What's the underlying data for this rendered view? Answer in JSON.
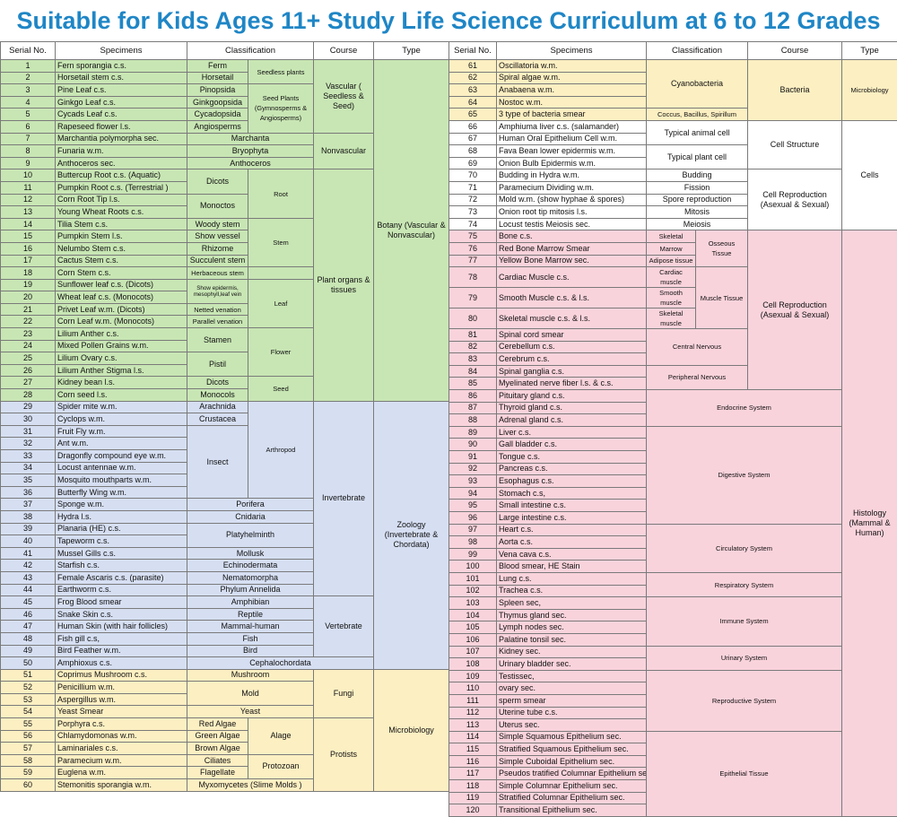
{
  "title": "Suitable for Kids Ages 11+ Study Life Science Curriculum at 6 to 12 Grades",
  "headers": {
    "serial": "Serial No.",
    "specimens": "Specimens",
    "classification": "Classification",
    "course": "Course",
    "type": "Type"
  },
  "left_rows": [
    [
      "1",
      "Fern sporangia c.s."
    ],
    [
      "2",
      "Horsetail stem c.s."
    ],
    [
      "3",
      "Pine Leaf c.s."
    ],
    [
      "4",
      "Ginkgo Leaf c.s."
    ],
    [
      "5",
      "Cycads Leaf c.s."
    ],
    [
      "6",
      "Rapeseed flower l.s."
    ],
    [
      "7",
      "Marchantia polymorpha sec."
    ],
    [
      "8",
      "Funaria w.m."
    ],
    [
      "9",
      "Anthoceros sec."
    ],
    [
      "10",
      "Buttercup Root c.s. (Aquatic)"
    ],
    [
      "11",
      "Pumpkin Root c.s. (Terrestrial )"
    ],
    [
      "12",
      "Corn Root Tip l.s."
    ],
    [
      "13",
      "Young Wheat Roots c.s."
    ],
    [
      "14",
      "Tilia Stem c.s."
    ],
    [
      "15",
      "Pumpkin Stem l.s."
    ],
    [
      "16",
      "Nelumbo Stem c.s."
    ],
    [
      "17",
      "Cactus Stem c.s."
    ],
    [
      "18",
      "Corn Stem c.s."
    ],
    [
      "19",
      "Sunflower leaf c.s. (Dicots)"
    ],
    [
      "20",
      "Wheat leaf c.s. (Monocots)"
    ],
    [
      "21",
      "Privet Leaf w.m. (Dicots)"
    ],
    [
      "22",
      "Corn Leaf w.m. (Monocots)"
    ],
    [
      "23",
      "Lilium Anther c.s."
    ],
    [
      "24",
      "Mixed Pollen Grains w.m."
    ],
    [
      "25",
      "Lilium Ovary c.s."
    ],
    [
      "26",
      "Lilium Anther Stigma l.s."
    ],
    [
      "27",
      "Kidney bean l.s."
    ],
    [
      "28",
      "Corn seed l.s."
    ],
    [
      "29",
      "Spider mite w.m."
    ],
    [
      "30",
      "Cyclops w.m."
    ],
    [
      "31",
      "Fruit Fly w.m."
    ],
    [
      "32",
      "Ant w.m."
    ],
    [
      "33",
      "Dragonfly compound eye w.m."
    ],
    [
      "34",
      "Locust antennae w.m."
    ],
    [
      "35",
      "Mosquito mouthparts w.m."
    ],
    [
      "36",
      "Butterfly Wing w.m."
    ],
    [
      "37",
      "Sponge w.m."
    ],
    [
      "38",
      "Hydra l.s."
    ],
    [
      "39",
      "Planaria (HE) c.s."
    ],
    [
      "40",
      "Tapeworm c.s."
    ],
    [
      "41",
      "Mussel Gills c.s."
    ],
    [
      "42",
      "Starfish c.s."
    ],
    [
      "43",
      "Female Ascaris c.s. (parasite)"
    ],
    [
      "44",
      "Earthworm c.s."
    ],
    [
      "45",
      "Frog Blood smear"
    ],
    [
      "46",
      "Snake Skin c.s."
    ],
    [
      "47",
      "Human Skin (with hair follicles)"
    ],
    [
      "48",
      "Fish gill c.s,"
    ],
    [
      "49",
      "Bird Feather w.m."
    ],
    [
      "50",
      "Amphioxus c.s."
    ],
    [
      "51",
      "Coprimus Mushroom c.s."
    ],
    [
      "52",
      "Penicillium w.m."
    ],
    [
      "53",
      "Aspergillus w.m."
    ],
    [
      "54",
      "Yeast Smear"
    ],
    [
      "55",
      "Porphyra c.s."
    ],
    [
      "56",
      "Chlamydomonas w.m."
    ],
    [
      "57",
      "Laminariales c.s."
    ],
    [
      "58",
      "Paramecium w.m."
    ],
    [
      "59",
      "Euglena w.m."
    ],
    [
      "60",
      "Stemonitis sporangia w.m."
    ]
  ],
  "right_rows": [
    [
      "61",
      "Oscillatoria w.m."
    ],
    [
      "62",
      "Spiral algae w.m."
    ],
    [
      "63",
      "Anabaena w.m."
    ],
    [
      "64",
      "Nostoc w.m."
    ],
    [
      "65",
      "3 type of bacteria smear"
    ],
    [
      "66",
      "Amphiuma liver c.s. (salamander)"
    ],
    [
      "67",
      "Human Oral Epithelium Cell w.m."
    ],
    [
      "68",
      "Fava Bean lower epidermis w.m."
    ],
    [
      "69",
      "Onion Bulb Epidermis w.m."
    ],
    [
      "70",
      "Budding in Hydra w.m."
    ],
    [
      "71",
      "Paramecium Dividing w.m."
    ],
    [
      "72",
      "Mold w.m. (show hyphae & spores)"
    ],
    [
      "73",
      "Onion root tip mitosis l.s."
    ],
    [
      "74",
      "Locust testis Meiosis sec."
    ],
    [
      "75",
      "Bone c.s."
    ],
    [
      "76",
      "Red Bone Marrow Smear"
    ],
    [
      "77",
      "Yellow Bone Marrow sec."
    ],
    [
      "78",
      "Cardiac Muscle c.s."
    ],
    [
      "79",
      "Smooth Muscle c.s. & l.s."
    ],
    [
      "80",
      "Skeletal muscle c.s. & l.s."
    ],
    [
      "81",
      "Spinal cord smear"
    ],
    [
      "82",
      "Cerebellum c.s."
    ],
    [
      "83",
      "Cerebrum c.s."
    ],
    [
      "84",
      "Spinal ganglia c.s."
    ],
    [
      "85",
      "Myelinated nerve fiber l.s. & c.s."
    ],
    [
      "86",
      "Pituitary gland c.s."
    ],
    [
      "87",
      "Thyroid gland c.s."
    ],
    [
      "88",
      "Adrenal gland c.s."
    ],
    [
      "89",
      "Liver c.s."
    ],
    [
      "90",
      "Gall bladder c.s."
    ],
    [
      "91",
      "Tongue c.s."
    ],
    [
      "92",
      "Pancreas c.s."
    ],
    [
      "93",
      "Esophagus c.s."
    ],
    [
      "94",
      "Stomach c.s,"
    ],
    [
      "95",
      "Small intestine c.s."
    ],
    [
      "96",
      "Large intestine c.s."
    ],
    [
      "97",
      "Heart c.s."
    ],
    [
      "98",
      "Aorta c.s."
    ],
    [
      "99",
      "Vena cava c.s."
    ],
    [
      "100",
      "Blood smear, HE Stain"
    ],
    [
      "101",
      "Lung c.s."
    ],
    [
      "102",
      "Trachea c.s."
    ],
    [
      "103",
      "Spleen sec,"
    ],
    [
      "104",
      "Thymus gland sec."
    ],
    [
      "105",
      "Lymph nodes sec."
    ],
    [
      "106",
      "Palatine tonsil sec."
    ],
    [
      "107",
      "Kidney sec."
    ],
    [
      "108",
      "Urinary bladder sec."
    ],
    [
      "109",
      "Testissec,"
    ],
    [
      "110",
      "ovary sec."
    ],
    [
      "111",
      "sperm smear"
    ],
    [
      "112",
      "Uterine tube c.s."
    ],
    [
      "113",
      "Uterus sec."
    ],
    [
      "114",
      "Simple Squamous Epithelium sec."
    ],
    [
      "115",
      "Stratified Squamous Epithelium sec."
    ],
    [
      "116",
      "Simple Cuboidal Epithelium sec."
    ],
    [
      "117",
      "Pseudos tratified Columnar Epithelium sec."
    ],
    [
      "118",
      "Simple Columnar Epithelium sec."
    ],
    [
      "119",
      "Stratified Columnar Epithelium sec."
    ],
    [
      "120",
      "Transitional Epithelium sec."
    ]
  ],
  "left_cells": [
    {
      "row": 1,
      "col": 2,
      "rs": 1,
      "cs": 1,
      "text": "Ferm",
      "cls": "g"
    },
    {
      "row": 1,
      "col": 3,
      "rs": 2,
      "cs": 1,
      "text": "Seedless plants",
      "cls": "g sm"
    },
    {
      "row": 1,
      "col": 4,
      "rs": 6,
      "cs": 1,
      "text": "Vascular ( Seedless & Seed)",
      "cls": "g"
    },
    {
      "row": 1,
      "col": 5,
      "rs": 28,
      "cs": 1,
      "text": "Botany (Vascular & Nonvascular)",
      "cls": "g"
    },
    {
      "row": 2,
      "col": 2,
      "rs": 1,
      "cs": 1,
      "text": "Horsetail",
      "cls": "g"
    },
    {
      "row": 3,
      "col": 2,
      "rs": 1,
      "cs": 1,
      "text": "Pinopsida",
      "cls": "g"
    },
    {
      "row": 3,
      "col": 3,
      "rs": 4,
      "cs": 1,
      "text": "Seed Plants (Gymnosperms & Angiosperms)",
      "cls": "g sm"
    },
    {
      "row": 4,
      "col": 2,
      "rs": 1,
      "cs": 1,
      "text": "Ginkgoopsida",
      "cls": "g"
    },
    {
      "row": 5,
      "col": 2,
      "rs": 1,
      "cs": 1,
      "text": "Cycadopsida",
      "cls": "g"
    },
    {
      "row": 6,
      "col": 2,
      "rs": 1,
      "cs": 1,
      "text": "Angiosperms",
      "cls": "g"
    },
    {
      "row": 7,
      "col": 2,
      "rs": 1,
      "cs": 2,
      "text": "Marchanta",
      "cls": "g"
    },
    {
      "row": 7,
      "col": 4,
      "rs": 3,
      "cs": 1,
      "text": "Nonvascular",
      "cls": "g"
    },
    {
      "row": 8,
      "col": 2,
      "rs": 1,
      "cs": 2,
      "text": "Bryophyta",
      "cls": "g"
    },
    {
      "row": 9,
      "col": 2,
      "rs": 1,
      "cs": 2,
      "text": "Anthoceros",
      "cls": "g"
    },
    {
      "row": 10,
      "col": 2,
      "rs": 2,
      "cs": 1,
      "text": "Dicots",
      "cls": "g"
    },
    {
      "row": 10,
      "col": 3,
      "rs": 4,
      "cs": 1,
      "text": "Root",
      "cls": "g sm"
    },
    {
      "row": 10,
      "col": 4,
      "rs": 19,
      "cs": 1,
      "text": "Plant organs & tissues",
      "cls": "g"
    },
    {
      "row": 12,
      "col": 2,
      "rs": 2,
      "cs": 1,
      "text": "Monoctos",
      "cls": "g"
    },
    {
      "row": 14,
      "col": 2,
      "rs": 1,
      "cs": 1,
      "text": "Woody stem",
      "cls": "g"
    },
    {
      "row": 14,
      "col": 3,
      "rs": 4,
      "cs": 1,
      "text": "Stem",
      "cls": "g sm"
    },
    {
      "row": 15,
      "col": 2,
      "rs": 1,
      "cs": 1,
      "text": "Show vessel",
      "cls": "g"
    },
    {
      "row": 16,
      "col": 2,
      "rs": 1,
      "cs": 1,
      "text": "Rhizome",
      "cls": "g"
    },
    {
      "row": 17,
      "col": 2,
      "rs": 1,
      "cs": 1,
      "text": "Succulent stem",
      "cls": "g"
    },
    {
      "row": 18,
      "col": 2,
      "rs": 1,
      "cs": 1,
      "text": "Herbaceous stem",
      "cls": "g sm"
    },
    {
      "row": 19,
      "col": 2,
      "rs": 2,
      "cs": 1,
      "text": "Show epidermis, mesophyll,leaf vein",
      "cls": "g xs"
    },
    {
      "row": 19,
      "col": 3,
      "rs": 4,
      "cs": 1,
      "text": "Leaf",
      "cls": "g sm"
    },
    {
      "row": 21,
      "col": 2,
      "rs": 1,
      "cs": 1,
      "text": "Netted venation",
      "cls": "g sm"
    },
    {
      "row": 22,
      "col": 2,
      "rs": 1,
      "cs": 1,
      "text": "Parallel venation",
      "cls": "g sm"
    },
    {
      "row": 23,
      "col": 2,
      "rs": 2,
      "cs": 1,
      "text": "Stamen",
      "cls": "g"
    },
    {
      "row": 23,
      "col": 3,
      "rs": 4,
      "cs": 1,
      "text": "Flower",
      "cls": "g sm"
    },
    {
      "row": 25,
      "col": 2,
      "rs": 2,
      "cs": 1,
      "text": "Pistil",
      "cls": "g"
    },
    {
      "row": 27,
      "col": 2,
      "rs": 1,
      "cs": 1,
      "text": "Dicots",
      "cls": "g"
    },
    {
      "row": 27,
      "col": 3,
      "rs": 2,
      "cs": 1,
      "text": "Seed",
      "cls": "g sm"
    },
    {
      "row": 28,
      "col": 2,
      "rs": 1,
      "cs": 1,
      "text": "Monocols",
      "cls": "g"
    },
    {
      "row": 29,
      "col": 2,
      "rs": 1,
      "cs": 1,
      "text": "Arachnida",
      "cls": "b"
    },
    {
      "row": 29,
      "col": 3,
      "rs": 8,
      "cs": 1,
      "text": "Arthropod",
      "cls": "b sm"
    },
    {
      "row": 29,
      "col": 4,
      "rs": 16,
      "cs": 1,
      "text": "Invertebrate",
      "cls": "b"
    },
    {
      "row": 29,
      "col": 5,
      "rs": 22,
      "cs": 1,
      "text": "Zoology (Invertebrate & Chordata)",
      "cls": "b"
    },
    {
      "row": 30,
      "col": 2,
      "rs": 1,
      "cs": 1,
      "text": "Crustacea",
      "cls": "b"
    },
    {
      "row": 31,
      "col": 2,
      "rs": 6,
      "cs": 1,
      "text": "Insect",
      "cls": "b"
    },
    {
      "row": 37,
      "col": 2,
      "rs": 1,
      "cs": 2,
      "text": "Porifera",
      "cls": "b"
    },
    {
      "row": 38,
      "col": 2,
      "rs": 1,
      "cs": 2,
      "text": "Cnidaria",
      "cls": "b"
    },
    {
      "row": 39,
      "col": 2,
      "rs": 2,
      "cs": 2,
      "text": "Platyhelminth",
      "cls": "b"
    },
    {
      "row": 41,
      "col": 2,
      "rs": 1,
      "cs": 2,
      "text": "Mollusk",
      "cls": "b"
    },
    {
      "row": 42,
      "col": 2,
      "rs": 1,
      "cs": 2,
      "text": "Echinodermata",
      "cls": "b"
    },
    {
      "row": 43,
      "col": 2,
      "rs": 1,
      "cs": 2,
      "text": "Nematomorpha",
      "cls": "b"
    },
    {
      "row": 44,
      "col": 2,
      "rs": 1,
      "cs": 2,
      "text": "Phylum Annelida",
      "cls": "b"
    },
    {
      "row": 45,
      "col": 2,
      "rs": 1,
      "cs": 2,
      "text": "Amphibian",
      "cls": "b"
    },
    {
      "row": 45,
      "col": 4,
      "rs": 5,
      "cs": 1,
      "text": "Vertebrate",
      "cls": "b"
    },
    {
      "row": 46,
      "col": 2,
      "rs": 1,
      "cs": 2,
      "text": "Reptile",
      "cls": "b"
    },
    {
      "row": 47,
      "col": 2,
      "rs": 1,
      "cs": 2,
      "text": "Mammal-human",
      "cls": "b"
    },
    {
      "row": 48,
      "col": 2,
      "rs": 1,
      "cs": 2,
      "text": "Fish",
      "cls": "b"
    },
    {
      "row": 49,
      "col": 2,
      "rs": 1,
      "cs": 2,
      "text": "Bird",
      "cls": "b"
    },
    {
      "row": 50,
      "col": 2,
      "rs": 1,
      "cs": 3,
      "text": "Cephalochordata",
      "cls": "b"
    },
    {
      "row": 51,
      "col": 2,
      "rs": 1,
      "cs": 2,
      "text": "Mushroom",
      "cls": "y"
    },
    {
      "row": 51,
      "col": 4,
      "rs": 4,
      "cs": 1,
      "text": "Fungi",
      "cls": "y"
    },
    {
      "row": 51,
      "col": 5,
      "rs": 10,
      "cs": 1,
      "text": "Microbiology",
      "cls": "y"
    },
    {
      "row": 52,
      "col": 2,
      "rs": 2,
      "cs": 2,
      "text": "Mold",
      "cls": "y"
    },
    {
      "row": 54,
      "col": 2,
      "rs": 1,
      "cs": 2,
      "text": "Yeast",
      "cls": "y"
    },
    {
      "row": 55,
      "col": 2,
      "rs": 1,
      "cs": 1,
      "text": "Red Algae",
      "cls": "y"
    },
    {
      "row": 55,
      "col": 3,
      "rs": 3,
      "cs": 1,
      "text": "Alage",
      "cls": "y"
    },
    {
      "row": 55,
      "col": 4,
      "rs": 6,
      "cs": 1,
      "text": "Protists",
      "cls": "y"
    },
    {
      "row": 56,
      "col": 2,
      "rs": 1,
      "cs": 1,
      "text": "Green Algae",
      "cls": "y"
    },
    {
      "row": 57,
      "col": 2,
      "rs": 1,
      "cs": 1,
      "text": "Brown Algae",
      "cls": "y"
    },
    {
      "row": 58,
      "col": 2,
      "rs": 1,
      "cs": 1,
      "text": "Ciliates",
      "cls": "y"
    },
    {
      "row": 58,
      "col": 3,
      "rs": 2,
      "cs": 1,
      "text": "Protozoan",
      "cls": "y"
    },
    {
      "row": 59,
      "col": 2,
      "rs": 1,
      "cs": 1,
      "text": "Flagellate",
      "cls": "y"
    },
    {
      "row": 60,
      "col": 2,
      "rs": 1,
      "cs": 2,
      "text": "Myxomycetes (Slime Molds )",
      "cls": "y"
    }
  ],
  "right_cells": [
    {
      "row": 1,
      "col": 2,
      "rs": 4,
      "cs": 2,
      "text": "Cyanobacteria",
      "cls": "y"
    },
    {
      "row": 1,
      "col": 4,
      "rs": 5,
      "cs": 1,
      "text": "Bacteria",
      "cls": "y"
    },
    {
      "row": 1,
      "col": 5,
      "rs": 5,
      "cs": 1,
      "text": "Microbiology",
      "cls": "y sm"
    },
    {
      "row": 5,
      "col": 2,
      "rs": 1,
      "cs": 2,
      "text": "Coccus, Bacillus, Spirillum",
      "cls": "y sm"
    },
    {
      "row": 6,
      "col": 2,
      "rs": 2,
      "cs": 2,
      "text": "Typical animal cell",
      "cls": "w"
    },
    {
      "row": 6,
      "col": 4,
      "rs": 4,
      "cs": 1,
      "text": "Cell Structure",
      "cls": "w"
    },
    {
      "row": 6,
      "col": 5,
      "rs": 9,
      "cs": 1,
      "text": "Cells",
      "cls": "w"
    },
    {
      "row": 8,
      "col": 2,
      "rs": 2,
      "cs": 2,
      "text": "Typical plant cell",
      "cls": "w"
    },
    {
      "row": 10,
      "col": 2,
      "rs": 1,
      "cs": 2,
      "text": "Budding",
      "cls": "w"
    },
    {
      "row": 10,
      "col": 4,
      "rs": 5,
      "cs": 1,
      "text": "Cell Reproduction (Asexual & Sexual)",
      "cls": "w"
    },
    {
      "row": 11,
      "col": 2,
      "rs": 1,
      "cs": 2,
      "text": "Fission",
      "cls": "w"
    },
    {
      "row": 12,
      "col": 2,
      "rs": 1,
      "cs": 2,
      "text": "Spore reproduction",
      "cls": "w"
    },
    {
      "row": 13,
      "col": 2,
      "rs": 1,
      "cs": 2,
      "text": "Mitosis",
      "cls": "w"
    },
    {
      "row": 14,
      "col": 2,
      "rs": 1,
      "cs": 2,
      "text": "Meiosis",
      "cls": "w"
    },
    {
      "row": 15,
      "col": 2,
      "rs": 1,
      "cs": 1,
      "text": "Skeletal",
      "cls": "p sm"
    },
    {
      "row": 15,
      "col": 3,
      "rs": 3,
      "cs": 1,
      "text": "Osseous Tissue",
      "cls": "p sm"
    },
    {
      "row": 15,
      "col": 4,
      "rs": 11,
      "cs": 1,
      "text": "Cell Reproduction (Asexual & Sexual)",
      "cls": "p"
    },
    {
      "row": 15,
      "col": 5,
      "rs": 46,
      "cs": 1,
      "text": "Histology (Mammal & Human)",
      "cls": "p"
    },
    {
      "row": 16,
      "col": 2,
      "rs": 1,
      "cs": 1,
      "text": "Marrow",
      "cls": "p sm"
    },
    {
      "row": 17,
      "col": 2,
      "rs": 1,
      "cs": 1,
      "text": "Adipose tissue",
      "cls": "p sm"
    },
    {
      "row": 18,
      "col": 2,
      "rs": 1,
      "cs": 1,
      "text": "Cardiac muscle",
      "cls": "p sm"
    },
    {
      "row": 18,
      "col": 3,
      "rs": 3,
      "cs": 1,
      "text": "Muscle Tissue",
      "cls": "p sm"
    },
    {
      "row": 19,
      "col": 2,
      "rs": 1,
      "cs": 1,
      "text": "Smooth muscle",
      "cls": "p sm"
    },
    {
      "row": 20,
      "col": 2,
      "rs": 1,
      "cs": 1,
      "text": "Skeletal muscle",
      "cls": "p sm"
    },
    {
      "row": 21,
      "col": 2,
      "rs": 3,
      "cs": 2,
      "text": "Central Nervous",
      "cls": "p sm"
    },
    {
      "row": 24,
      "col": 2,
      "rs": 2,
      "cs": 2,
      "text": "Peripheral Nervous",
      "cls": "p sm"
    },
    {
      "row": 26,
      "col": 2,
      "rs": 3,
      "cs": 3,
      "text": "Endocrine System",
      "cls": "p sm"
    },
    {
      "row": 29,
      "col": 2,
      "rs": 8,
      "cs": 3,
      "text": "Digestive System",
      "cls": "p sm"
    },
    {
      "row": 37,
      "col": 2,
      "rs": 4,
      "cs": 3,
      "text": "Circulatory System",
      "cls": "p sm"
    },
    {
      "row": 41,
      "col": 2,
      "rs": 2,
      "cs": 3,
      "text": "Respiratory System",
      "cls": "p sm"
    },
    {
      "row": 43,
      "col": 2,
      "rs": 4,
      "cs": 3,
      "text": "Immune System",
      "cls": "p sm"
    },
    {
      "row": 47,
      "col": 2,
      "rs": 2,
      "cs": 3,
      "text": "Urinary System",
      "cls": "p sm"
    },
    {
      "row": 49,
      "col": 2,
      "rs": 5,
      "cs": 3,
      "text": "Reproductive System",
      "cls": "p sm"
    },
    {
      "row": 54,
      "col": 2,
      "rs": 7,
      "cs": 3,
      "text": "Epithelial Tissue",
      "cls": "p sm"
    }
  ],
  "left_colors": {
    "1-28": "g",
    "29-50": "b",
    "51-60": "y"
  },
  "right_colors": {
    "1-5": "y",
    "6-14": "w",
    "15-60": "p"
  },
  "palette": {
    "green": "#c8e6b4",
    "blue": "#d6dff2",
    "yellow": "#fcefc2",
    "pink": "#f9d3dc",
    "title": "#1f86c6"
  }
}
